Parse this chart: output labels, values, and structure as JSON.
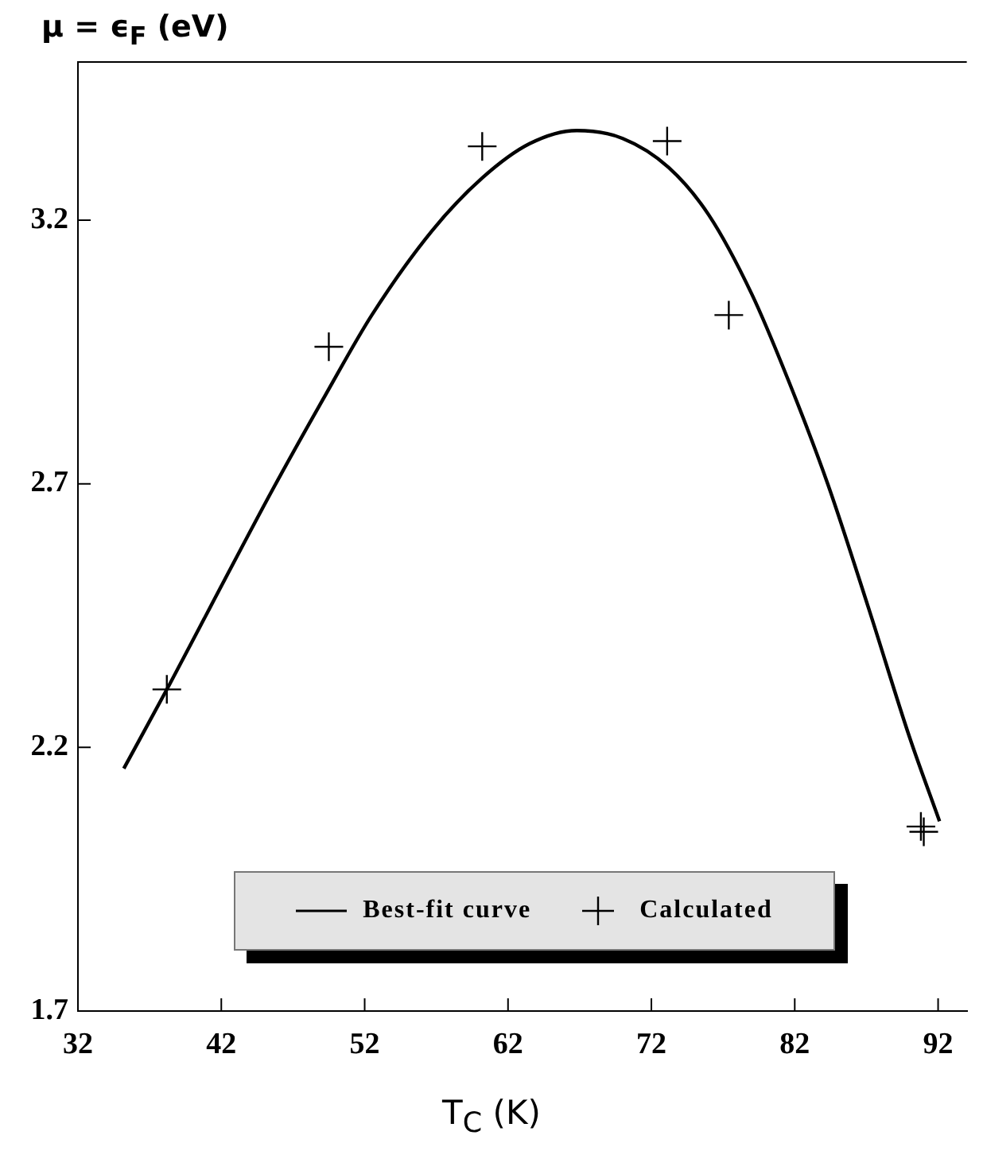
{
  "chart_data": {
    "type": "scatter",
    "xlabel": "T$_{C}$ (K)",
    "ylabel": "μ = ϵ$_{F}$ (eV)",
    "xlim": [
      32,
      94
    ],
    "xticks": [
      32,
      42,
      52,
      62,
      72,
      82,
      92
    ],
    "ylim": [
      1.7,
      3.5
    ],
    "yticks": [
      1.7,
      2.2,
      2.7,
      3.2
    ],
    "grid": false,
    "legend": "bottom",
    "marker": "cross",
    "series": [
      {
        "name": "Best-fit curve",
        "type": "line",
        "color": "#000000",
        "marker": "none",
        "line_style": "solid",
        "x": [
          35.2,
          38.4,
          41.5,
          45.6,
          49.3,
          52.5,
          56.7,
          60.2,
          63.5,
          66.8,
          70,
          73.2,
          76,
          79,
          81.5,
          84.3,
          87.2,
          90,
          92.1
        ],
        "values": [
          2.16,
          2.32,
          2.48,
          2.69,
          2.87,
          3.02,
          3.18,
          3.28,
          3.345,
          3.37,
          3.355,
          3.3,
          3.21,
          3.06,
          2.9,
          2.7,
          2.46,
          2.22,
          2.06
        ]
      },
      {
        "name": "Calculated",
        "color": "#000000",
        "x": [
          38.2,
          49.5,
          60.2,
          73.1,
          77.4,
          90.8,
          91
        ],
        "values": [
          2.31,
          2.96,
          3.34,
          3.35,
          3.02,
          2.05,
          2.04
        ]
      }
    ]
  }
}
